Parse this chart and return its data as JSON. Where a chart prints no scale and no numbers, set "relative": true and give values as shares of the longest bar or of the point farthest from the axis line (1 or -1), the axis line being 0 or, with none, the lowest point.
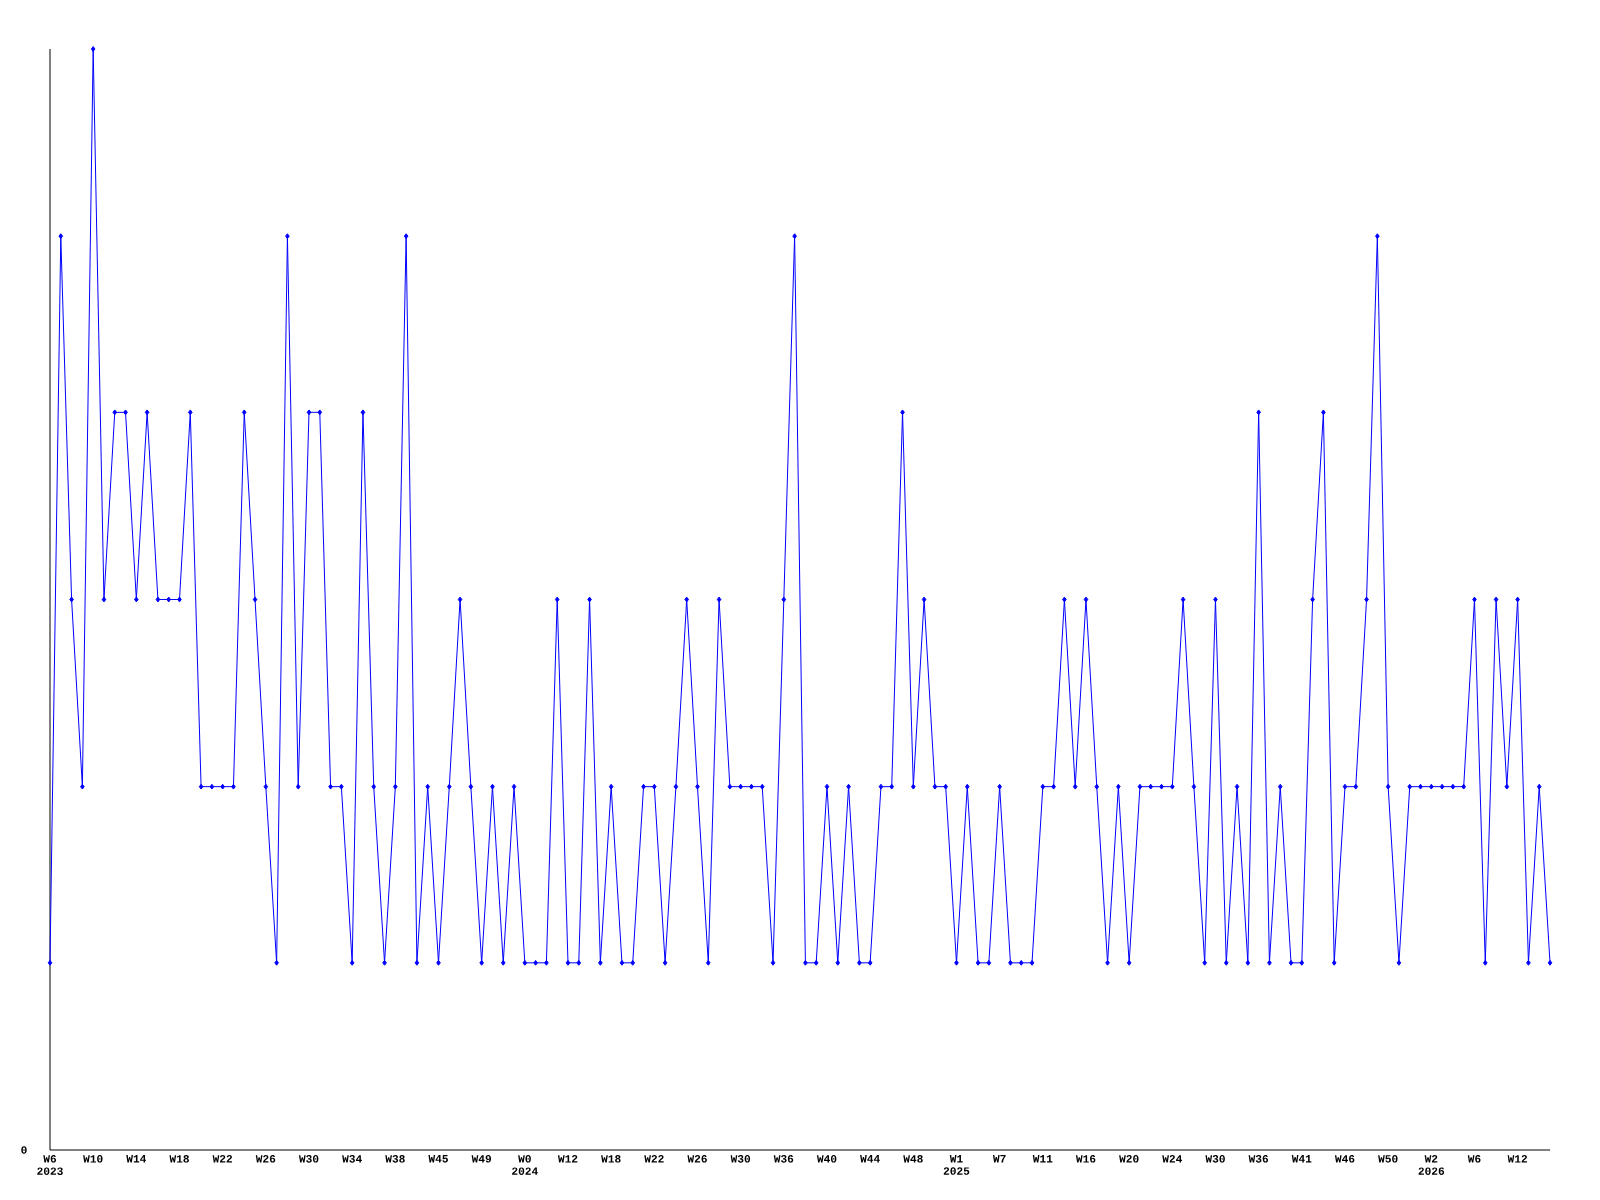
{
  "chart_data": {
    "type": "line",
    "relative": true,
    "color": "#0000ff",
    "marker": "diamond",
    "line_style": "solid",
    "annotations": [
      "0"
    ],
    "categories": [
      "W6 2023",
      null,
      null,
      null,
      "W10",
      null,
      null,
      null,
      "W14",
      null,
      null,
      null,
      "W18",
      null,
      null,
      null,
      "W22",
      null,
      null,
      null,
      "W26",
      null,
      null,
      null,
      "W30",
      null,
      null,
      null,
      "W34",
      null,
      null,
      null,
      "W38",
      null,
      null,
      null,
      "W45",
      null,
      null,
      null,
      "W49",
      null,
      null,
      null,
      "W0 2024",
      null,
      null,
      null,
      "W12",
      null,
      null,
      null,
      "W18",
      null,
      null,
      null,
      "W22",
      null,
      null,
      null,
      "W26",
      null,
      null,
      null,
      "W30",
      null,
      null,
      null,
      "W36",
      null,
      null,
      null,
      "W40",
      null,
      null,
      null,
      "W44",
      null,
      null,
      null,
      "W48",
      null,
      null,
      null,
      "W1 2025",
      null,
      null,
      null,
      "W7",
      null,
      null,
      null,
      "W11",
      null,
      null,
      null,
      "W16",
      null,
      null,
      null,
      "W20",
      null,
      null,
      null,
      "W24",
      null,
      null,
      null,
      "W30",
      null,
      null,
      null,
      "W36",
      null,
      null,
      null,
      "W41",
      null,
      null,
      null,
      "W46",
      null,
      null,
      null,
      "W50",
      null,
      null,
      null,
      "W2 2026",
      null,
      null,
      null,
      "W6",
      null,
      null,
      null,
      "W12",
      null,
      null,
      null
    ],
    "values": [
      0.17,
      0.83,
      0.5,
      0.33,
      1,
      0.5,
      0.67,
      0.67,
      0.5,
      0.67,
      0.5,
      0.5,
      0.5,
      0.67,
      0.33,
      0.33,
      0.33,
      0.33,
      0.67,
      0.5,
      0.33,
      0.17,
      0.83,
      0.33,
      0.67,
      0.67,
      0.33,
      0.33,
      0.17,
      0.67,
      0.33,
      0.17,
      0.33,
      0.83,
      0.17,
      0.33,
      0.17,
      0.33,
      0.5,
      0.33,
      0.17,
      0.33,
      0.17,
      0.33,
      0.17,
      0.17,
      0.17,
      0.5,
      0.17,
      0.17,
      0.5,
      0.17,
      0.33,
      0.17,
      0.17,
      0.33,
      0.33,
      0.17,
      0.33,
      0.5,
      0.33,
      0.17,
      0.5,
      0.33,
      0.33,
      0.33,
      0.33,
      0.17,
      0.5,
      0.83,
      0.17,
      0.17,
      0.33,
      0.17,
      0.33,
      0.17,
      0.17,
      0.33,
      0.33,
      0.67,
      0.33,
      0.5,
      0.33,
      0.33,
      0.17,
      0.33,
      0.17,
      0.17,
      0.33,
      0.17,
      0.17,
      0.17,
      0.33,
      0.33,
      0.5,
      0.33,
      0.5,
      0.33,
      0.17,
      0.33,
      0.17,
      0.33,
      0.33,
      0.33,
      0.33,
      0.5,
      0.33,
      0.17,
      0.5,
      0.17,
      0.33,
      0.17,
      0.67,
      0.17,
      0.33,
      0.17,
      0.17,
      0.5,
      0.67,
      0.17,
      0.33,
      0.33,
      0.5,
      0.83,
      0.33,
      0.17,
      0.33,
      0.33,
      0.33,
      0.33,
      0.33,
      0.33,
      0.5,
      0.17,
      0.5,
      0.33,
      0.5,
      0.17,
      0.33,
      0.17
    ]
  }
}
